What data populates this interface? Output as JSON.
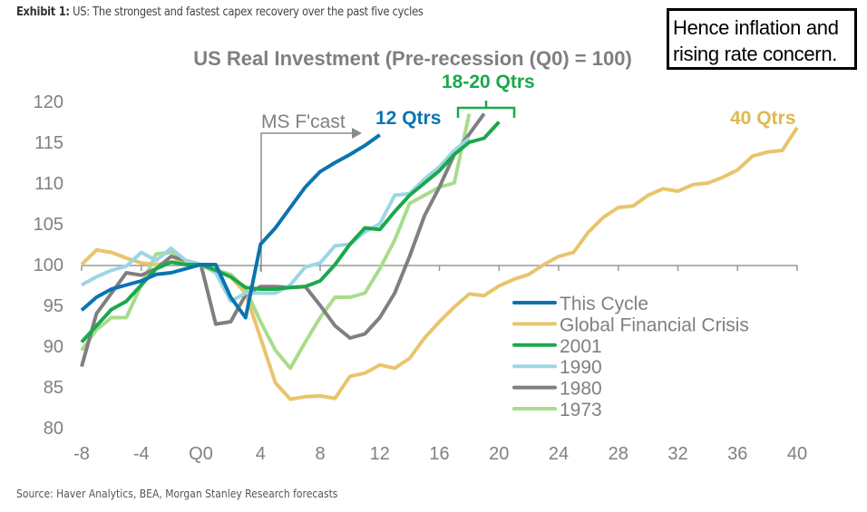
{
  "header": {
    "exhibit_label": "Exhibit 1:",
    "exhibit_text": "US: The strongest and fastest capex recovery over the past five cycles"
  },
  "note": {
    "line1": "Hence inflation and",
    "line2": "rising rate concern."
  },
  "source": "Source: Haver Analytics, BEA, Morgan Stanley Research forecasts",
  "chart_data": {
    "type": "line",
    "title": "US Real Investment (Pre-recession (Q0) = 100)",
    "xlabel": "",
    "ylabel": "",
    "xlim": [
      -8,
      40
    ],
    "ylim": [
      80,
      120
    ],
    "x_ticks": [
      "-8",
      "-4",
      "Q0",
      "4",
      "8",
      "12",
      "16",
      "20",
      "24",
      "28",
      "32",
      "36",
      "40"
    ],
    "y_ticks": [
      "120",
      "115",
      "110",
      "105",
      "100",
      "95",
      "90",
      "85",
      "80"
    ],
    "grid": false,
    "legend": "center-right",
    "annotations": {
      "forecast": "MS F'cast",
      "this_cycle": "12 Qtrs",
      "past_cycles": "18-20 Qtrs",
      "gfc": "40 Qtrs"
    },
    "series": [
      {
        "name": "This Cycle",
        "color": "#0a74b0",
        "x_start": -8,
        "values": [
          94.4,
          96,
          97,
          97.5,
          98,
          98.8,
          99,
          99.5,
          100,
          100,
          96,
          93.5,
          102.5,
          104.5,
          107,
          109.5,
          111.4,
          112.5,
          113.5,
          114.6,
          115.9
        ]
      },
      {
        "name": "Global Financial Crisis",
        "color": "#e9c46c",
        "x_start": -8,
        "values": [
          100,
          101.8,
          101.5,
          100.8,
          100.2,
          100,
          100.3,
          100.5,
          100,
          99.5,
          98.5,
          96.5,
          91,
          85.5,
          83.5,
          83.8,
          83.9,
          83.6,
          86.3,
          86.7,
          87.7,
          87.3,
          88.5,
          91,
          93,
          94.8,
          96.4,
          96.2,
          97.4,
          98.2,
          98.8,
          100,
          101,
          101.5,
          104,
          105.8,
          107,
          107.2,
          108.5,
          109.3,
          109,
          109.8,
          110,
          110.7,
          111.6,
          113.3,
          113.8,
          114,
          116.8
        ]
      },
      {
        "name": "2001",
        "color": "#1ba84c",
        "x_start": -8,
        "values": [
          90.5,
          92.5,
          94.5,
          95.5,
          97.5,
          99.5,
          100.3,
          100,
          100,
          99.3,
          98.5,
          97.2,
          97,
          97,
          97.2,
          97.3,
          98,
          100,
          102.5,
          104.5,
          104.3,
          106.5,
          108.5,
          110,
          111.5,
          113.5,
          115,
          115.5,
          117.5
        ]
      },
      {
        "name": "1990",
        "color": "#9dd5e5",
        "x_start": -8,
        "values": [
          97.5,
          98.5,
          99.3,
          99.8,
          101.5,
          100.5,
          102,
          100.5,
          100,
          99,
          95.5,
          96.5,
          96.5,
          96.5,
          97.5,
          99.7,
          100.2,
          102.3,
          102.5,
          104,
          105,
          108.5,
          108.7,
          110.5,
          112,
          114,
          115.5
        ]
      },
      {
        "name": "1980",
        "color": "#7f7f7f",
        "x_start": -8,
        "values": [
          87.5,
          94,
          96.5,
          99,
          98.7,
          99.5,
          101,
          100.5,
          100,
          92.7,
          93,
          96.3,
          97.3,
          97.3,
          97.2,
          97.3,
          95,
          92.5,
          91,
          91.5,
          93.5,
          96.5,
          101,
          106,
          109.5,
          113.5,
          116,
          118.5
        ]
      },
      {
        "name": "1973",
        "color": "#a8dc8c",
        "x_start": -8,
        "values": [
          89.5,
          92,
          93.5,
          93.5,
          97.5,
          101.3,
          101.5,
          100.5,
          100,
          99.3,
          98.8,
          97,
          93,
          89.5,
          87.3,
          90.5,
          93.5,
          96,
          96,
          96.5,
          99.5,
          103,
          107.5,
          108.5,
          109.5,
          110,
          118.5
        ]
      }
    ]
  }
}
